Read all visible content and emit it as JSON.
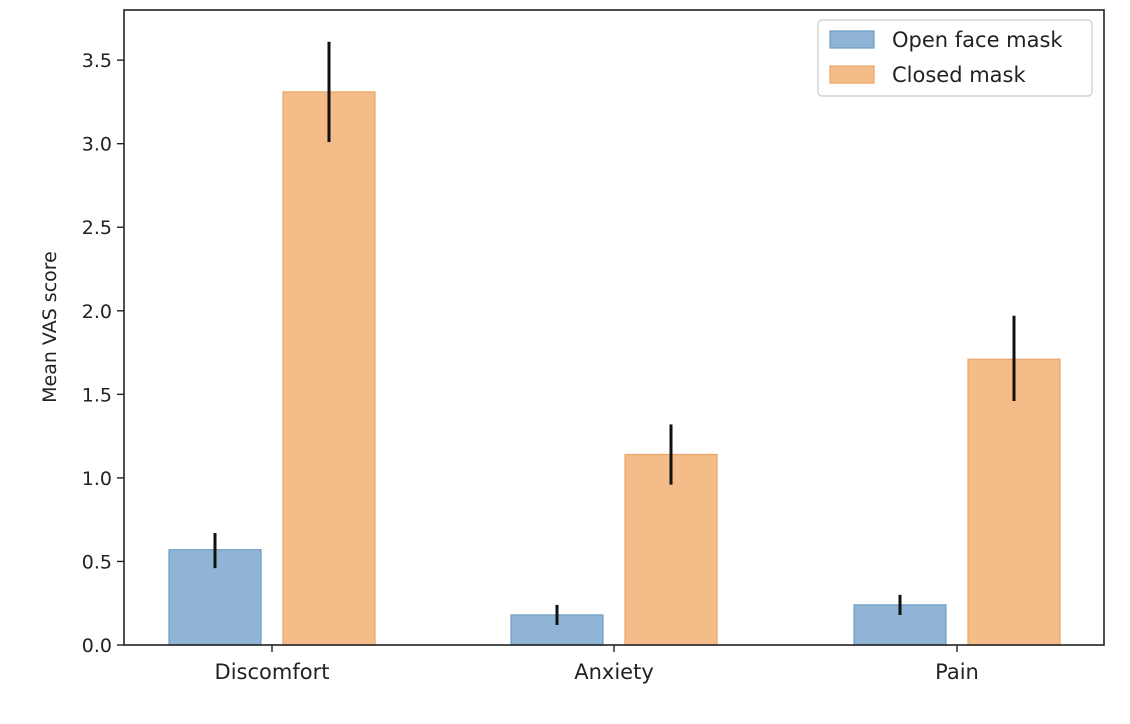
{
  "chart_data": {
    "type": "bar",
    "title": "",
    "xlabel": "",
    "ylabel": "Mean VAS score",
    "categories": [
      "Discomfort",
      "Anxiety",
      "Pain"
    ],
    "series": [
      {
        "name": "Open face mask",
        "color": "#8fb4d6",
        "edge_color": "#6e9cc4",
        "values": [
          0.57,
          0.18,
          0.24
        ],
        "error_low": [
          0.46,
          0.12,
          0.18
        ],
        "error_high": [
          0.67,
          0.24,
          0.3
        ]
      },
      {
        "name": "Closed mask",
        "color": "#f4bc88",
        "edge_color": "#eaa468",
        "values": [
          3.31,
          1.14,
          1.71
        ],
        "error_low": [
          3.01,
          0.96,
          1.46
        ],
        "error_high": [
          3.61,
          1.32,
          1.97
        ]
      }
    ],
    "ylim": [
      0.0,
      3.8
    ],
    "yticks": [
      "0.0",
      "0.5",
      "1.0",
      "1.5",
      "2.0",
      "2.5",
      "3.0",
      "3.5"
    ],
    "grid": false,
    "legend_position": "top-right"
  }
}
